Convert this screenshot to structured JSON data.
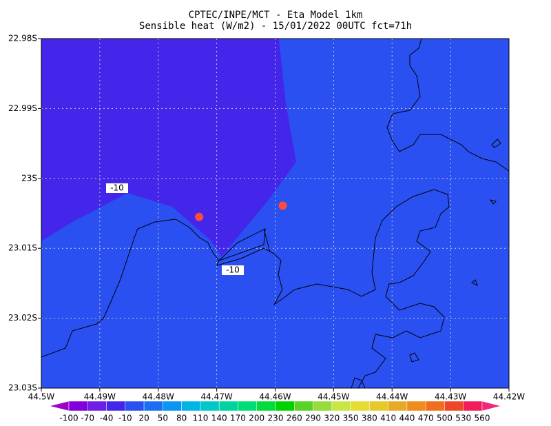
{
  "chart_data": {
    "type": "scatter",
    "title": "CPTEC/INPE/MCT -  Eta Model 1km",
    "subtitle": "Sensible heat (W/m2) - 15/01/2022 00UTC fct=71h",
    "x": [
      44.473,
      44.4587
    ],
    "y": [
      23.0055,
      23.0039
    ],
    "color": "#ff4a3c",
    "xlim": [
      44.5,
      44.42
    ],
    "ylim": [
      22.98,
      23.03
    ],
    "xticks": [
      {
        "value": 44.5,
        "label": "44.5W"
      },
      {
        "value": 44.49,
        "label": "44.49W"
      },
      {
        "value": 44.48,
        "label": "44.48W"
      },
      {
        "value": 44.47,
        "label": "44.47W"
      },
      {
        "value": 44.46,
        "label": "44.46W"
      },
      {
        "value": 44.45,
        "label": "44.45W"
      },
      {
        "value": 44.44,
        "label": "44.44W"
      },
      {
        "value": 44.43,
        "label": "44.43W"
      },
      {
        "value": 44.42,
        "label": "44.42W"
      }
    ],
    "yticks": [
      {
        "value": 22.98,
        "label": "22.98S"
      },
      {
        "value": 22.99,
        "label": "22.99S"
      },
      {
        "value": 23,
        "label": "23S"
      },
      {
        "value": 23.01,
        "label": "23.01S"
      },
      {
        "value": 23.02,
        "label": "23.02S"
      },
      {
        "value": 23.03,
        "label": "23.03S"
      }
    ],
    "grid": true,
    "contour_labels": [
      "-10",
      "-10"
    ],
    "colorbar": {
      "levels": [
        -100,
        -70,
        -40,
        -10,
        20,
        50,
        80,
        110,
        140,
        170,
        200,
        230,
        260,
        290,
        320,
        350,
        380,
        410,
        440,
        470,
        500,
        530,
        560
      ],
      "colors": [
        "#a000c8",
        "#8200dc",
        "#6e1ee6",
        "#4426ea",
        "#2a50f2",
        "#1e6ef5",
        "#0a96f0",
        "#00b4e6",
        "#00c8c8",
        "#00d2a0",
        "#00dc78",
        "#00dc3c",
        "#00d200",
        "#5ad228",
        "#96dc3c",
        "#c8e646",
        "#e6dc32",
        "#e6c828",
        "#e6aa28",
        "#f08c1e",
        "#f06e1e",
        "#f04628",
        "#f01e5a",
        "#f0287a"
      ]
    }
  }
}
